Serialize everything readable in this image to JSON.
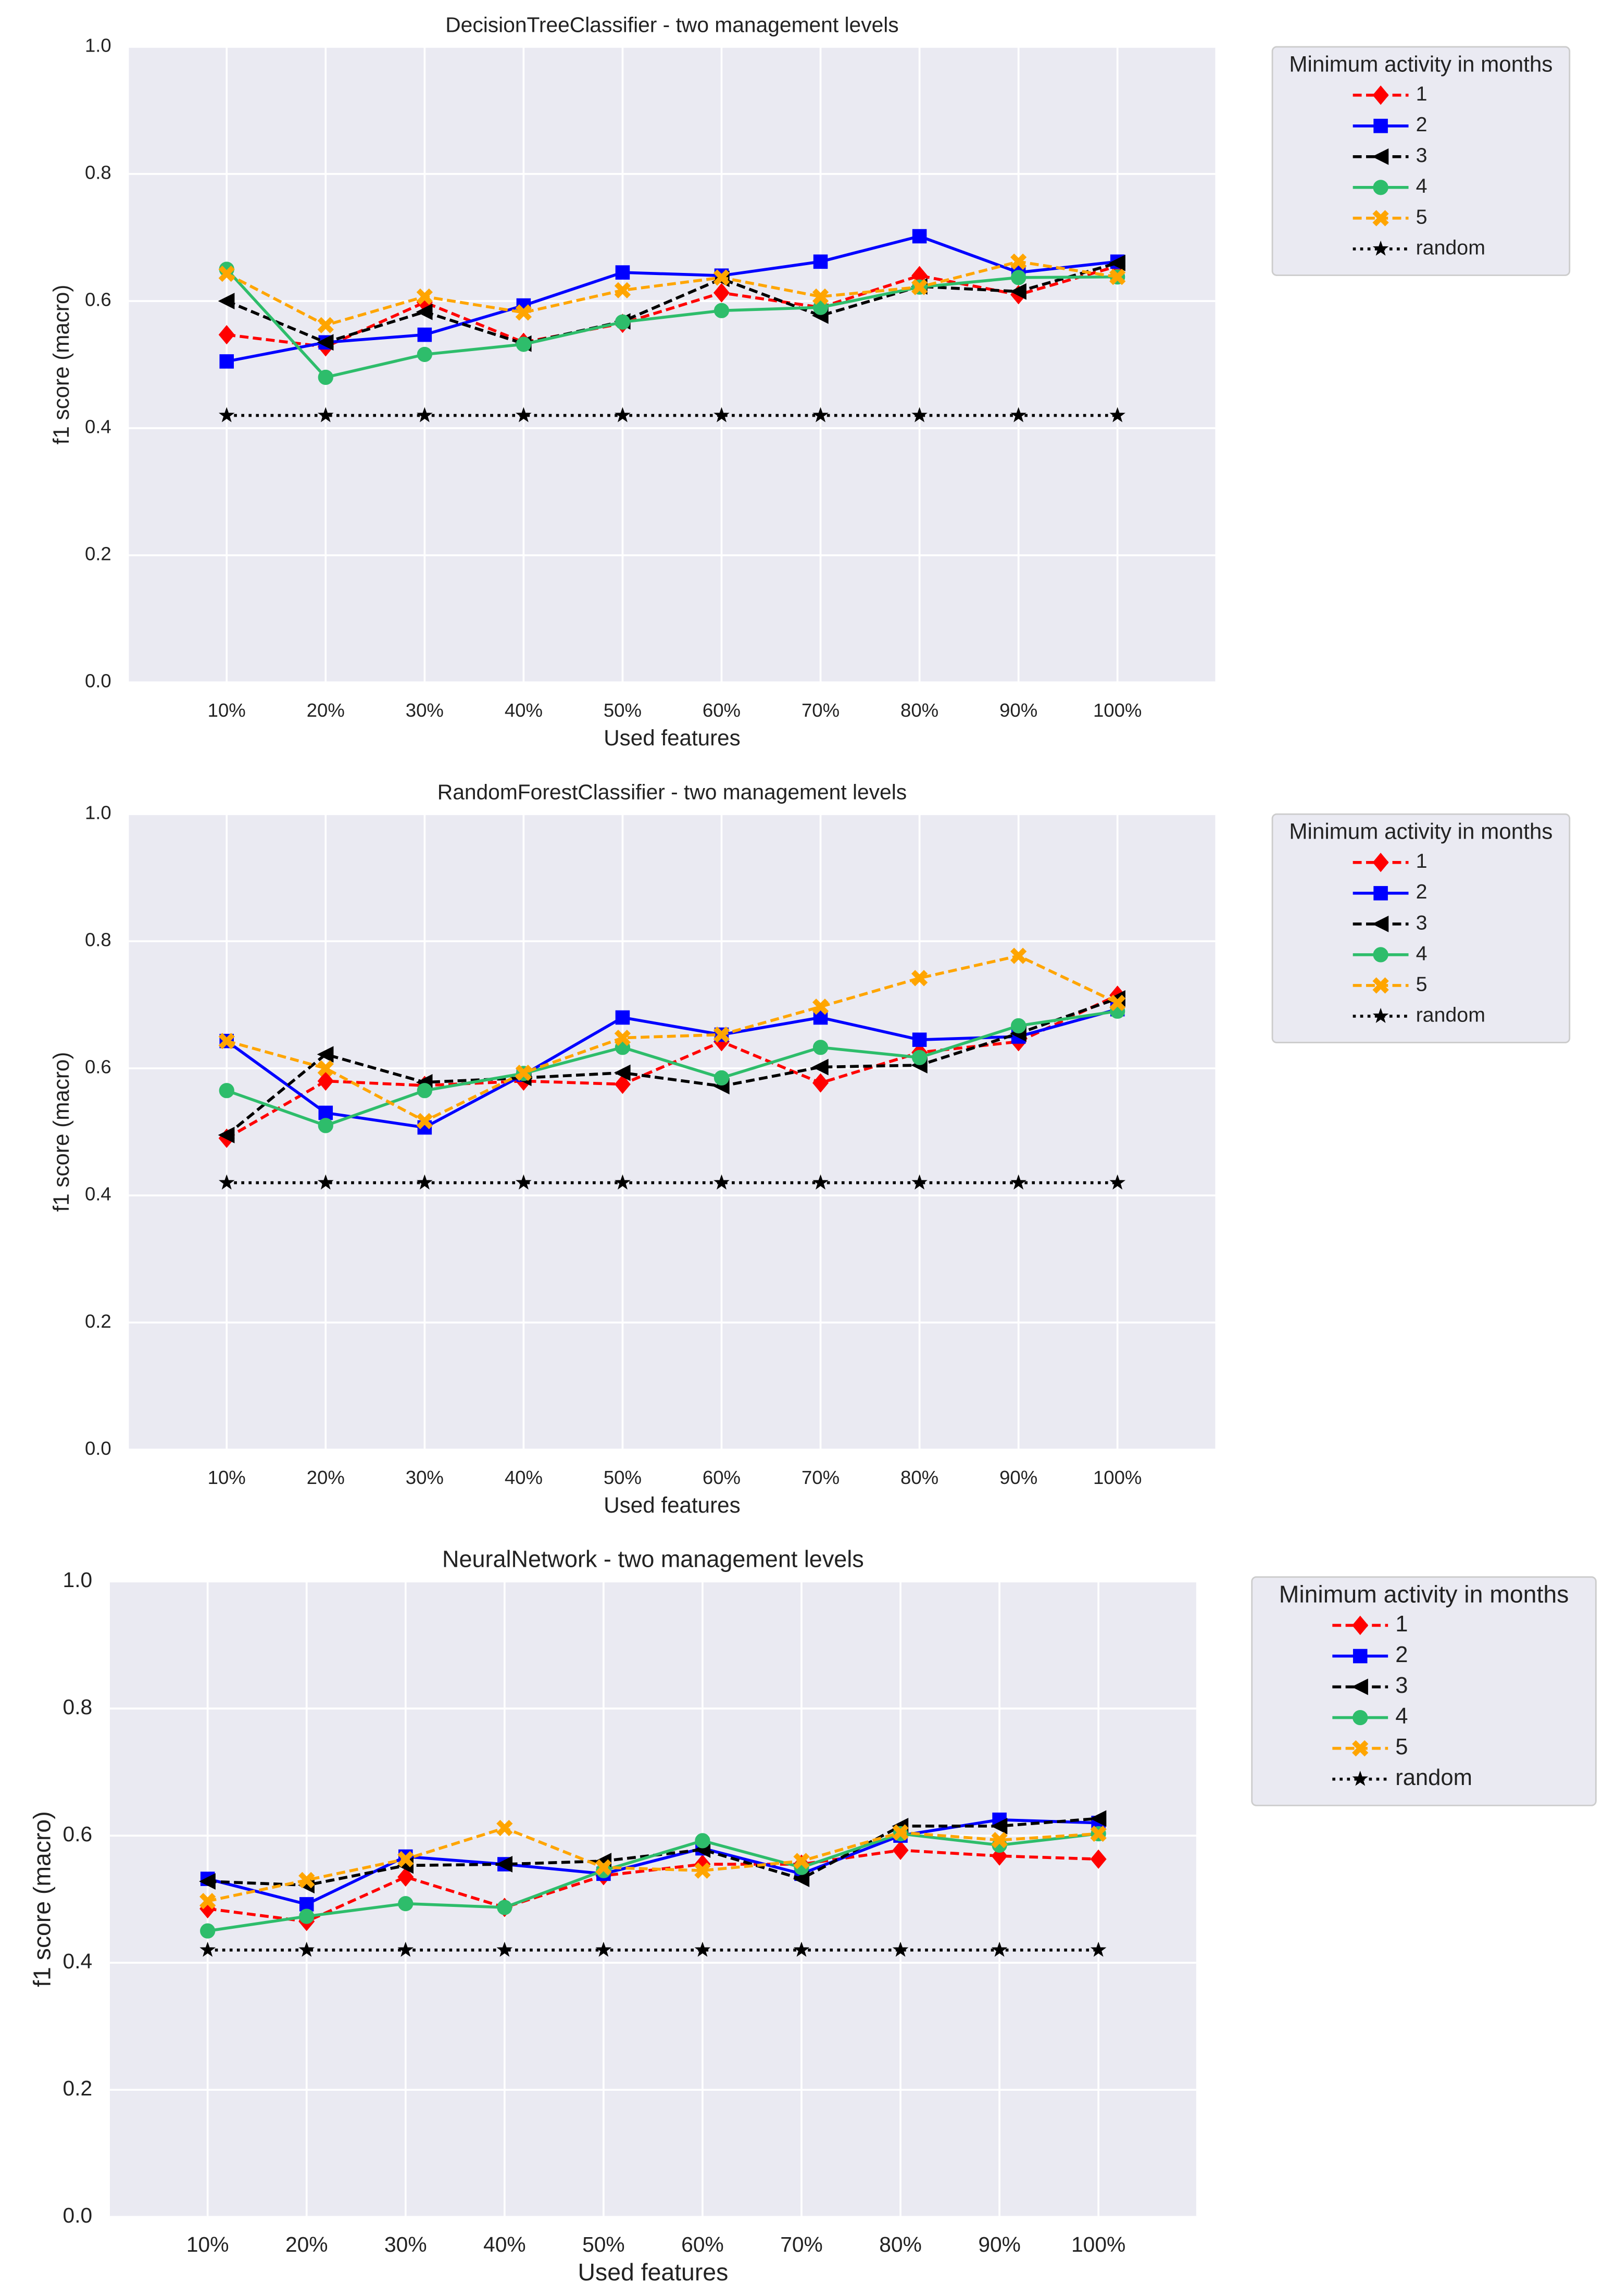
{
  "chart_data": [
    {
      "type": "line",
      "title": "DecisionTreeClassifier - two management levels",
      "xlabel": "Used features",
      "ylabel": "f1 score (macro)",
      "categories": [
        "10%",
        "20%",
        "30%",
        "40%",
        "50%",
        "60%",
        "70%",
        "80%",
        "90%",
        "100%"
      ],
      "ylim": [
        0,
        1
      ],
      "yticks": [
        {
          "value": 0,
          "label": "0.0"
        },
        0.2,
        0.4,
        0.6,
        0.8,
        {
          "value": 1,
          "label": "1.0"
        }
      ],
      "grid": true,
      "legend": "right",
      "legend_title": "Minimum activity in months",
      "series": [
        {
          "name": "1",
          "color": "#ff0000",
          "linestyle": "dashed",
          "marker": "diamond",
          "values": [
            0.547,
            0.528,
            0.598,
            0.535,
            0.565,
            0.613,
            0.59,
            0.64,
            0.61,
            0.655
          ]
        },
        {
          "name": "2",
          "color": "#0000ff",
          "linestyle": "solid",
          "marker": "square",
          "values": [
            0.505,
            0.535,
            0.547,
            0.593,
            0.645,
            0.64,
            0.662,
            0.702,
            0.645,
            0.662
          ]
        },
        {
          "name": "3",
          "color": "#000000",
          "linestyle": "dashed",
          "marker": "triangle-left",
          "values": [
            0.6,
            0.535,
            0.583,
            0.533,
            0.568,
            0.635,
            0.577,
            0.623,
            0.615,
            0.66
          ]
        },
        {
          "name": "4",
          "color": "#2ebd6b",
          "linestyle": "solid",
          "marker": "circle",
          "values": [
            0.65,
            0.48,
            0.516,
            0.532,
            0.567,
            0.585,
            0.59,
            0.622,
            0.637,
            0.638
          ]
        },
        {
          "name": "5",
          "color": "#ffa500",
          "linestyle": "dashed",
          "marker": "x",
          "values": [
            0.643,
            0.562,
            0.607,
            0.582,
            0.617,
            0.637,
            0.607,
            0.622,
            0.662,
            0.638
          ]
        },
        {
          "name": "random",
          "color": "#000000",
          "linestyle": "dotted",
          "marker": "star",
          "values": [
            0.42,
            0.42,
            0.42,
            0.42,
            0.42,
            0.42,
            0.42,
            0.42,
            0.42,
            0.42
          ]
        }
      ]
    },
    {
      "type": "line",
      "title": "RandomForestClassifier - two management levels",
      "xlabel": "Used features",
      "ylabel": "f1 score (macro)",
      "categories": [
        "10%",
        "20%",
        "30%",
        "40%",
        "50%",
        "60%",
        "70%",
        "80%",
        "90%",
        "100%"
      ],
      "ylim": [
        0,
        1
      ],
      "yticks": [
        {
          "value": 0,
          "label": "0.0"
        },
        0.2,
        0.4,
        0.6,
        0.8,
        {
          "value": 1,
          "label": "1.0"
        }
      ],
      "grid": true,
      "legend": "right",
      "legend_title": "Minimum activity in months",
      "series": [
        {
          "name": "1",
          "color": "#ff0000",
          "linestyle": "dashed",
          "marker": "diamond",
          "values": [
            0.49,
            0.58,
            0.573,
            0.58,
            0.575,
            0.642,
            0.577,
            0.625,
            0.642,
            0.715
          ]
        },
        {
          "name": "2",
          "color": "#0000ff",
          "linestyle": "solid",
          "marker": "square",
          "values": [
            0.643,
            0.53,
            0.507,
            0.59,
            0.68,
            0.653,
            0.68,
            0.645,
            0.65,
            0.693
          ]
        },
        {
          "name": "3",
          "color": "#000000",
          "linestyle": "dashed",
          "marker": "triangle-left",
          "values": [
            0.495,
            0.622,
            0.578,
            0.585,
            0.593,
            0.572,
            0.602,
            0.605,
            0.655,
            0.71
          ]
        },
        {
          "name": "4",
          "color": "#2ebd6b",
          "linestyle": "solid",
          "marker": "circle",
          "values": [
            0.565,
            0.51,
            0.565,
            0.592,
            0.633,
            0.585,
            0.633,
            0.617,
            0.667,
            0.69
          ]
        },
        {
          "name": "5",
          "color": "#ffa500",
          "linestyle": "dashed",
          "marker": "x",
          "values": [
            0.643,
            0.6,
            0.517,
            0.593,
            0.648,
            0.653,
            0.697,
            0.742,
            0.777,
            0.703
          ]
        },
        {
          "name": "random",
          "color": "#000000",
          "linestyle": "dotted",
          "marker": "star",
          "values": [
            0.42,
            0.42,
            0.42,
            0.42,
            0.42,
            0.42,
            0.42,
            0.42,
            0.42,
            0.42
          ]
        }
      ]
    },
    {
      "type": "line",
      "title": "NeuralNetwork - two management levels",
      "xlabel": "Used features",
      "ylabel": "f1 score (macro)",
      "categories": [
        "10%",
        "20%",
        "30%",
        "40%",
        "50%",
        "60%",
        "70%",
        "80%",
        "90%",
        "100%"
      ],
      "ylim": [
        0,
        1
      ],
      "yticks": [
        {
          "value": 0,
          "label": "0.0"
        },
        0.2,
        0.4,
        0.6,
        0.8,
        {
          "value": 1,
          "label": "1.0"
        }
      ],
      "grid": true,
      "legend": "right",
      "legend_title": "Minimum activity in months",
      "series": [
        {
          "name": "1",
          "color": "#ff0000",
          "linestyle": "dashed",
          "marker": "diamond",
          "values": [
            0.485,
            0.465,
            0.535,
            0.487,
            0.537,
            0.555,
            0.555,
            0.577,
            0.568,
            0.563
          ]
        },
        {
          "name": "2",
          "color": "#0000ff",
          "linestyle": "solid",
          "marker": "square",
          "values": [
            0.532,
            0.492,
            0.567,
            0.555,
            0.54,
            0.58,
            0.54,
            0.6,
            0.625,
            0.62
          ]
        },
        {
          "name": "3",
          "color": "#000000",
          "linestyle": "dashed",
          "marker": "triangle-left",
          "values": [
            0.528,
            0.522,
            0.553,
            0.555,
            0.56,
            0.578,
            0.532,
            0.615,
            0.615,
            0.627
          ]
        },
        {
          "name": "4",
          "color": "#2ebd6b",
          "linestyle": "solid",
          "marker": "circle",
          "values": [
            0.45,
            0.473,
            0.493,
            0.487,
            0.545,
            0.592,
            0.55,
            0.603,
            0.585,
            0.603
          ]
        },
        {
          "name": "5",
          "color": "#ffa500",
          "linestyle": "dashed",
          "marker": "x",
          "values": [
            0.497,
            0.53,
            0.563,
            0.612,
            0.55,
            0.545,
            0.56,
            0.605,
            0.593,
            0.603
          ]
        },
        {
          "name": "random",
          "color": "#000000",
          "linestyle": "dotted",
          "marker": "star",
          "values": [
            0.42,
            0.42,
            0.42,
            0.42,
            0.42,
            0.42,
            0.42,
            0.42,
            0.42,
            0.42
          ]
        }
      ]
    }
  ]
}
